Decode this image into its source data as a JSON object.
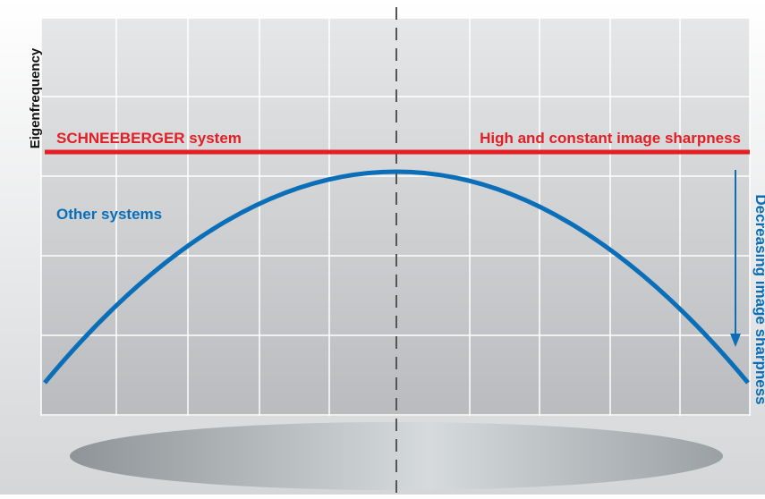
{
  "y_axis_label": "Eigenfrequency",
  "red_line": {
    "left_label": "SCHNEEBERGER system",
    "right_label": "High and constant image sharpness"
  },
  "blue_curve": {
    "label": "Other systems"
  },
  "arrow_label": "Decreasing image sharpness"
}
